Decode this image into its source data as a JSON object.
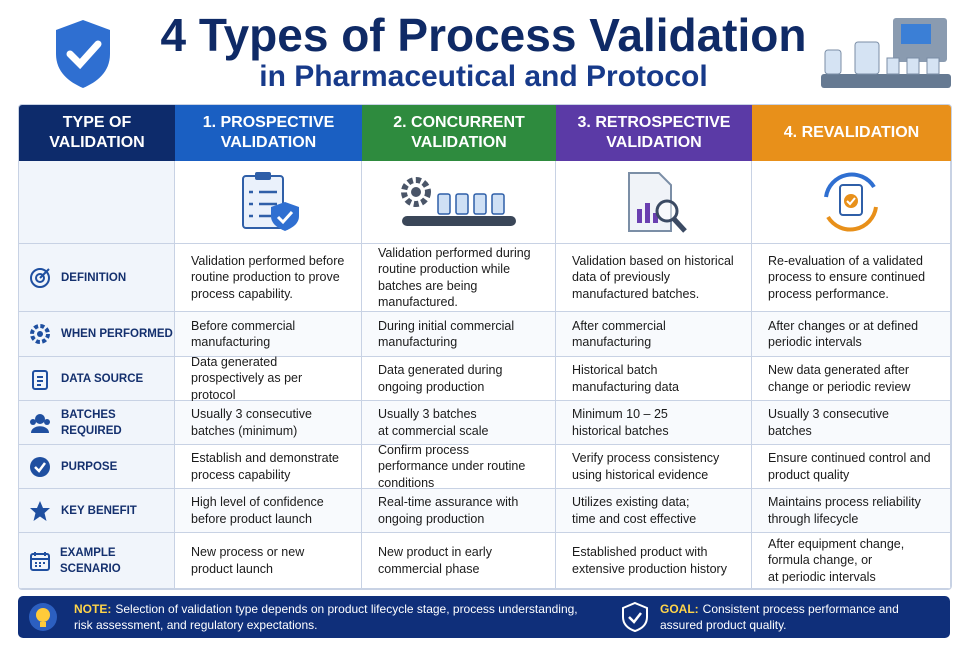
{
  "header": {
    "title": "4 Types of Process Validation",
    "subtitle": "in Pharmaceutical and Protocol"
  },
  "table": {
    "columns": [
      "TYPE OF VALIDATION",
      "1. PROSPECTIVE VALIDATION",
      "2. CONCURRENT VALIDATION",
      "3. RETROSPECTIVE VALIDATION",
      "4. REVALIDATION"
    ],
    "rows": [
      {
        "label": "DEFINITION",
        "cells": [
          "Validation performed before routine production to prove process capability.",
          "Validation performed during routine production while batches are being manufactured.",
          "Validation based on historical data of previously manufactured batches.",
          "Re-evaluation of a validated process to ensure continued process performance."
        ]
      },
      {
        "label": "WHEN PERFORMED",
        "cells": [
          "Before commercial manufacturing",
          "During initial commercial manufacturing",
          "After commercial manufacturing",
          "After changes or at defined periodic intervals"
        ]
      },
      {
        "label": "DATA SOURCE",
        "cells": [
          "Data generated prospectively as per protocol",
          "Data generated during ongoing production",
          "Historical batch manufacturing data",
          "New data generated after change or periodic review"
        ]
      },
      {
        "label": "BATCHES\nREQUIRED",
        "cells": [
          "Usually 3 consecutive batches (minimum)",
          "Usually 3 batches\nat commercial scale",
          "Minimum 10 – 25\nhistorical batches",
          "Usually 3 consecutive\nbatches"
        ]
      },
      {
        "label": "PURPOSE",
        "cells": [
          "Establish and demonstrate process capability",
          "Confirm process performance under routine conditions",
          "Verify process consistency using historical evidence",
          "Ensure continued control and product quality"
        ]
      },
      {
        "label": "KEY BENEFIT",
        "cells": [
          "High level of confidence before product launch",
          "Real-time assurance with ongoing production",
          "Utilizes existing data;\ntime and cost effective",
          "Maintains process reliability through lifecycle"
        ]
      },
      {
        "label": "EXAMPLE SCENARIO",
        "cells": [
          "New process or new product launch",
          "New product in early commercial phase",
          "Established product with extensive production history",
          "After equipment change, formula change, or\nat periodic intervals"
        ]
      }
    ]
  },
  "footer": {
    "note_label": "NOTE:",
    "note": "Selection of validation type depends on product lifecycle stage, process understanding, risk assessment, and regulatory expectations.",
    "goal_label": "GOAL:",
    "goal": "Consistent process performance and assured product quality."
  }
}
